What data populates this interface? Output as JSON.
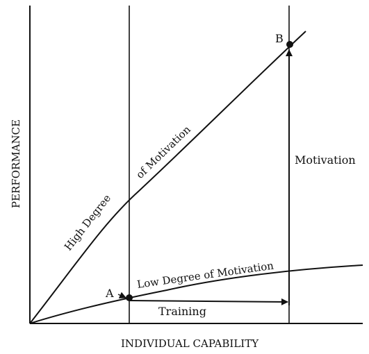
{
  "diagram": {
    "axis_x_label": "INDIVIDUAL CAPABILITY",
    "axis_y_label": "PERFORMANCE",
    "curve_high_label_part1": "High Degree",
    "curve_high_label_part2": "of Motivation",
    "curve_low_label": "Low Degree of Motivation",
    "point_a_label": "A",
    "point_b_label": "B",
    "arrow_training_label": "Training",
    "arrow_motivation_label": "Motivation",
    "line_color": "#111111"
  }
}
